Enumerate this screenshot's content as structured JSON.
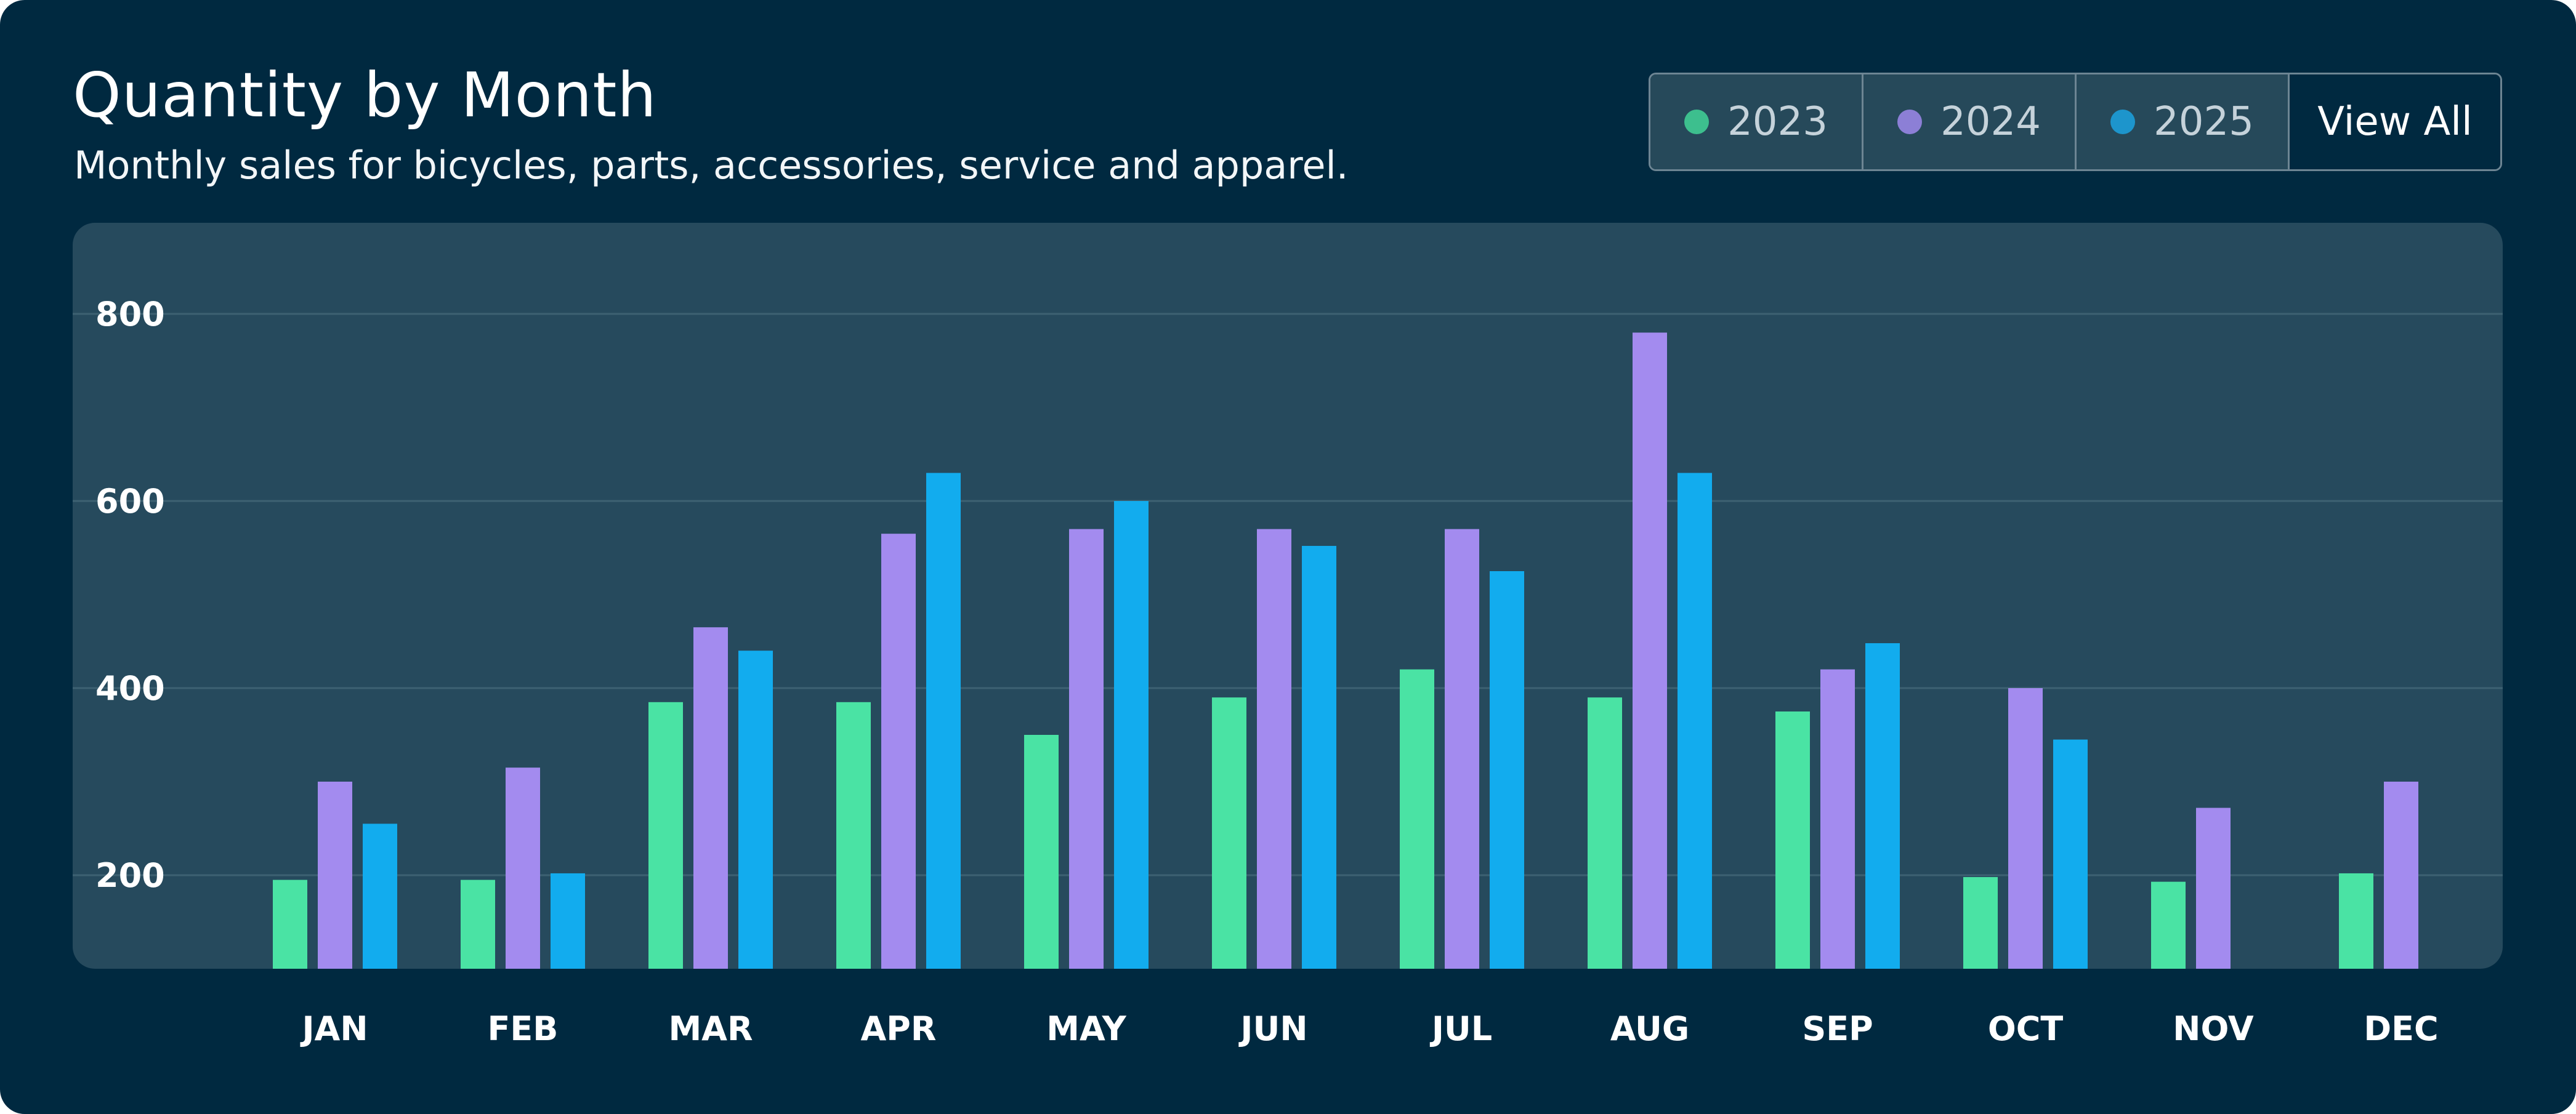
{
  "header": {
    "title": "Quantity by Month",
    "subtitle": "Monthly sales for bicycles, parts, accessories, service and apparel."
  },
  "filters": [
    {
      "label": "2023",
      "color": "#3dbf8e"
    },
    {
      "label": "2024",
      "color": "#8c7fd6"
    },
    {
      "label": "2025",
      "color": "#1d95cc"
    }
  ],
  "view_all_label": "View All",
  "chart_data": {
    "type": "bar",
    "title": "Quantity by Month",
    "xlabel": "",
    "ylabel": "",
    "categories": [
      "JAN",
      "FEB",
      "MAR",
      "APR",
      "MAY",
      "JUN",
      "JUL",
      "AUG",
      "SEP",
      "OCT",
      "NOV",
      "DEC"
    ],
    "series": [
      {
        "name": "2023",
        "color": "#4ae3a4",
        "values": [
          195,
          195,
          385,
          385,
          350,
          390,
          420,
          390,
          375,
          198,
          193,
          202
        ]
      },
      {
        "name": "2024",
        "color": "#a38bef",
        "values": [
          300,
          315,
          465,
          565,
          570,
          570,
          570,
          780,
          420,
          400,
          272,
          300
        ]
      },
      {
        "name": "2025",
        "color": "#12acee",
        "values": [
          255,
          202,
          440,
          630,
          600,
          552,
          525,
          630,
          448,
          345,
          null,
          null
        ]
      }
    ],
    "yticks": [
      200,
      400,
      600,
      800
    ],
    "ylim": [
      100,
      860
    ],
    "grid": true
  }
}
